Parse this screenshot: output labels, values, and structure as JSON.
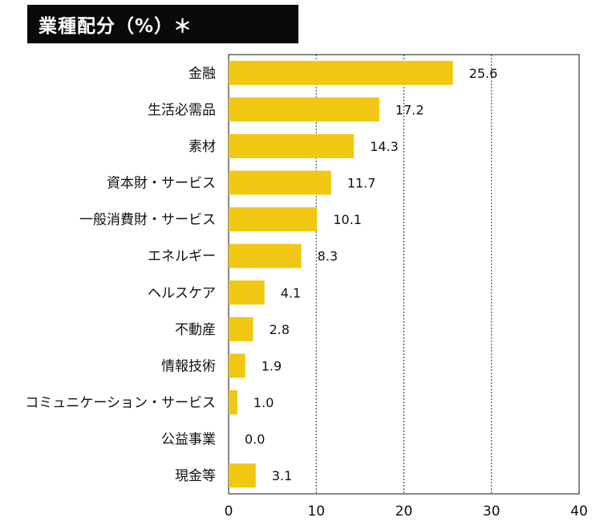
{
  "title": "業種配分（%）＊",
  "chart_data": {
    "type": "bar",
    "orientation": "horizontal",
    "title": "業種配分（%）＊",
    "categories": [
      "金融",
      "生活必需品",
      "素材",
      "資本財・サービス",
      "一般消費財・サービス",
      "エネルギー",
      "ヘルスケア",
      "不動産",
      "情報技術",
      "コミュニケーション・サービス",
      "公益事業",
      "現金等"
    ],
    "values": [
      25.6,
      17.2,
      14.3,
      11.7,
      10.1,
      8.3,
      4.1,
      2.8,
      1.9,
      1.0,
      0.0,
      3.1
    ],
    "value_labels": [
      "25.6",
      "17.2",
      "14.3",
      "11.7",
      "10.1",
      "8.3",
      "4.1",
      "2.8",
      "1.9",
      "1.0",
      "0.0",
      "3.1"
    ],
    "xlim": [
      0,
      40
    ],
    "xticks": [
      0,
      10,
      20,
      30,
      40
    ],
    "xtick_labels": [
      "0",
      "10",
      "20",
      "30",
      "40"
    ],
    "xlabel": "",
    "ylabel": "",
    "grid": "vertical dotted",
    "bar_color": "#F0C814"
  }
}
